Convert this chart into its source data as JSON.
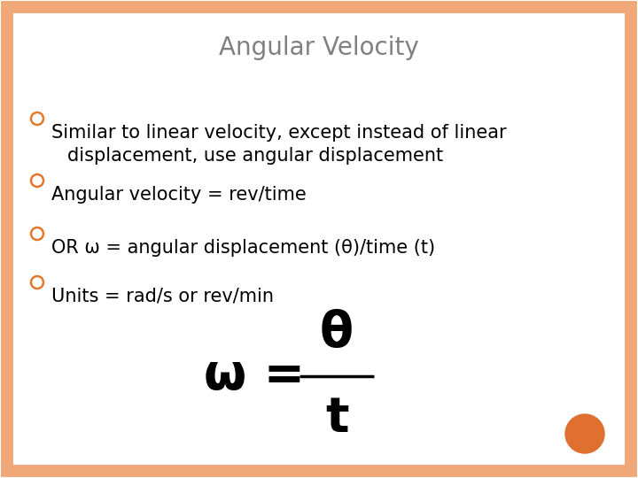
{
  "background_color": "#ffffff",
  "border_color": "#f0a878",
  "text_color": "#000000",
  "title_color": "#808080",
  "bullet_color": "#e07830",
  "orange_dot_color": "#e07030",
  "title_line1": "NGULAR",
  "title_A": "A",
  "title_V": "V",
  "title_line2": "ELOCITY",
  "font_size_title_large": 20,
  "font_size_title_small": 16,
  "bullet_items_line1": [
    "Similar to linear velocity, except instead of linear",
    "Angular velocity = rev/time",
    "OR ω = angular displacement (θ)/time (t)",
    "Units = rad/s or rev/min"
  ],
  "bullet_item_wrap": "displacement, use angular displacement",
  "font_size_body": 15,
  "font_size_formula_large": 40,
  "font_size_formula_med": 34,
  "formula_omega": "ω = ",
  "formula_theta": "θ",
  "formula_t": "t"
}
